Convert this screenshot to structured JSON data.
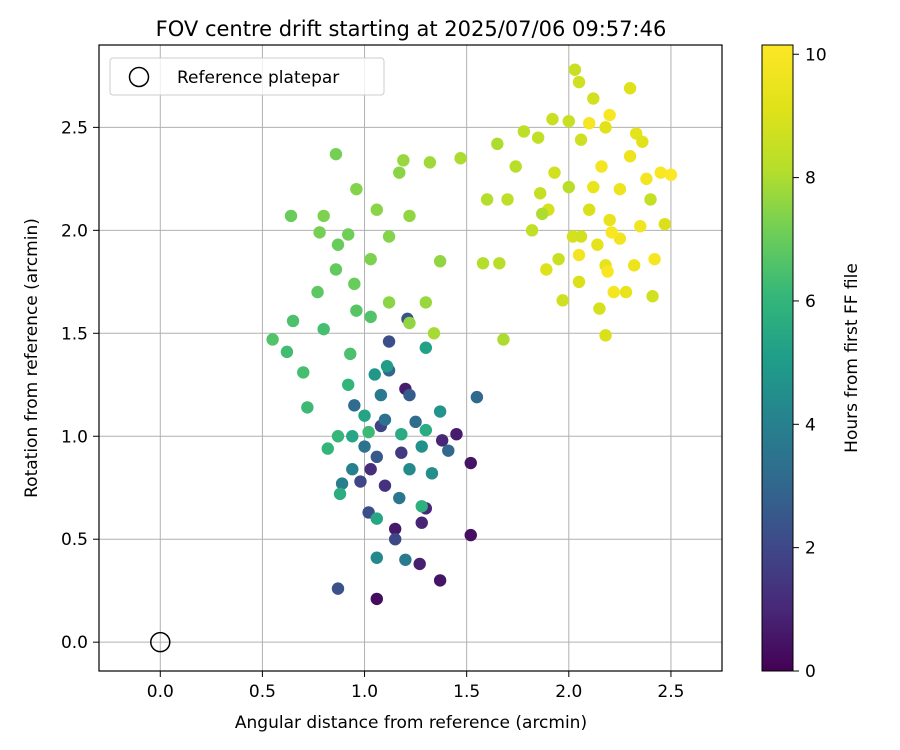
{
  "chart_data": {
    "type": "scatter",
    "title": "FOV centre drift starting at 2025/07/06 09:57:46",
    "xlabel": "Angular distance from reference (arcmin)",
    "ylabel": "Rotation from reference (arcmin)",
    "xlim": [
      -0.3,
      2.75
    ],
    "ylim": [
      -0.14,
      2.9
    ],
    "x_ticks": [
      0.0,
      0.5,
      1.0,
      1.5,
      2.0,
      2.5
    ],
    "y_ticks": [
      0.0,
      0.5,
      1.0,
      1.5,
      2.0,
      2.5
    ],
    "grid": true,
    "legend": {
      "placement": "upper-left",
      "entries": [
        {
          "label": "Reference platepar",
          "marker": "hollow-circle"
        }
      ]
    },
    "colorbar": {
      "label": "Hours from first FF file",
      "colormap": "viridis",
      "range": [
        0,
        10.15
      ],
      "ticks": [
        0,
        2,
        4,
        6,
        8,
        10
      ]
    },
    "reference_point": {
      "x": 0.0,
      "y": 0.0
    },
    "series": [
      {
        "marker": "filled-circle",
        "points": [
          [
            1.06,
            0.21,
            0.3
          ],
          [
            1.37,
            0.3,
            0.5
          ],
          [
            0.87,
            0.26,
            2.3
          ],
          [
            1.52,
            0.52,
            0.4
          ],
          [
            1.52,
            0.87,
            0.5
          ],
          [
            1.45,
            1.01,
            0.7
          ],
          [
            1.38,
            0.98,
            1.0
          ],
          [
            1.27,
            0.38,
            0.8
          ],
          [
            1.3,
            0.65,
            1.0
          ],
          [
            1.15,
            0.55,
            0.6
          ],
          [
            1.28,
            0.58,
            0.9
          ],
          [
            1.2,
            1.23,
            0.7
          ],
          [
            1.03,
            0.84,
            1.2
          ],
          [
            1.1,
            0.76,
            1.3
          ],
          [
            1.18,
            0.92,
            1.6
          ],
          [
            1.08,
            1.05,
            1.8
          ],
          [
            1.15,
            0.5,
            2.0
          ],
          [
            1.02,
            0.63,
            2.2
          ],
          [
            0.98,
            0.78,
            2.0
          ],
          [
            1.06,
            0.9,
            2.5
          ],
          [
            1.12,
            1.46,
            2.2
          ],
          [
            1.21,
            1.57,
            2.4
          ],
          [
            1.12,
            1.32,
            3.0
          ],
          [
            1.22,
            1.2,
            2.7
          ],
          [
            1.25,
            1.07,
            3.2
          ],
          [
            1.41,
            0.93,
            3.0
          ],
          [
            1.55,
            1.19,
            3.1
          ],
          [
            0.95,
            1.15,
            3.2
          ],
          [
            1.1,
            1.08,
            3.4
          ],
          [
            1.0,
            0.95,
            3.5
          ],
          [
            1.17,
            0.7,
            3.6
          ],
          [
            1.2,
            0.4,
            3.8
          ],
          [
            1.06,
            0.41,
            4.3
          ],
          [
            0.94,
            0.84,
            4.0
          ],
          [
            0.89,
            0.77,
            3.9
          ],
          [
            1.08,
            1.2,
            3.7
          ],
          [
            1.22,
            0.84,
            4.4
          ],
          [
            1.33,
            0.82,
            4.5
          ],
          [
            1.37,
            1.12,
            4.7
          ],
          [
            1.28,
            0.95,
            4.6
          ],
          [
            1.05,
            1.3,
            4.8
          ],
          [
            1.3,
            1.43,
            5.2
          ],
          [
            1.11,
            1.34,
            5.0
          ],
          [
            1.0,
            1.1,
            5.3
          ],
          [
            0.94,
            1.0,
            5.4
          ],
          [
            1.18,
            1.01,
            5.6
          ],
          [
            1.3,
            1.03,
            5.6
          ],
          [
            1.06,
            0.6,
            5.4
          ],
          [
            1.28,
            0.66,
            5.8
          ],
          [
            0.88,
            0.72,
            5.7
          ],
          [
            0.82,
            0.94,
            6.0
          ],
          [
            0.87,
            1.0,
            6.1
          ],
          [
            1.02,
            1.02,
            6.2
          ],
          [
            0.92,
            1.25,
            6.0
          ],
          [
            0.72,
            1.14,
            6.2
          ],
          [
            0.7,
            1.31,
            6.4
          ],
          [
            0.62,
            1.41,
            6.3
          ],
          [
            0.65,
            1.56,
            6.5
          ],
          [
            0.55,
            1.47,
            6.6
          ],
          [
            0.8,
            1.52,
            6.4
          ],
          [
            0.93,
            1.4,
            6.5
          ],
          [
            0.96,
            1.61,
            6.7
          ],
          [
            1.03,
            1.58,
            6.6
          ],
          [
            0.77,
            1.7,
            6.8
          ],
          [
            0.86,
            1.81,
            6.9
          ],
          [
            0.95,
            1.74,
            7.0
          ],
          [
            0.87,
            1.93,
            7.0
          ],
          [
            0.78,
            1.99,
            7.2
          ],
          [
            0.92,
            1.98,
            7.1
          ],
          [
            0.8,
            2.07,
            7.3
          ],
          [
            0.64,
            2.07,
            7.0
          ],
          [
            0.96,
            2.2,
            7.4
          ],
          [
            1.03,
            1.86,
            7.3
          ],
          [
            1.12,
            1.97,
            7.4
          ],
          [
            1.17,
            2.28,
            7.5
          ],
          [
            1.22,
            2.07,
            7.6
          ],
          [
            1.06,
            2.1,
            7.5
          ],
          [
            1.19,
            2.34,
            7.7
          ],
          [
            0.86,
            2.37,
            7.2
          ],
          [
            1.32,
            2.33,
            7.8
          ],
          [
            1.37,
            1.85,
            7.6
          ],
          [
            1.3,
            1.65,
            7.7
          ],
          [
            1.12,
            1.65,
            7.5
          ],
          [
            1.22,
            1.55,
            7.6
          ],
          [
            1.34,
            1.5,
            7.9
          ],
          [
            1.47,
            2.35,
            8.0
          ],
          [
            1.58,
            1.84,
            8.1
          ],
          [
            1.68,
            1.47,
            8.0
          ],
          [
            1.66,
            1.84,
            8.2
          ],
          [
            1.6,
            2.15,
            8.1
          ],
          [
            1.7,
            2.15,
            8.3
          ],
          [
            1.65,
            2.42,
            8.0
          ],
          [
            1.74,
            2.31,
            8.2
          ],
          [
            1.82,
            2.0,
            8.4
          ],
          [
            1.86,
            2.18,
            8.5
          ],
          [
            1.78,
            2.48,
            8.3
          ],
          [
            1.85,
            2.45,
            8.4
          ],
          [
            1.92,
            2.54,
            8.6
          ],
          [
            2.0,
            2.53,
            8.6
          ],
          [
            2.06,
            2.44,
            8.7
          ],
          [
            1.93,
            2.28,
            8.8
          ],
          [
            1.95,
            1.86,
            8.6
          ],
          [
            1.97,
            1.66,
            8.7
          ],
          [
            2.02,
            1.97,
            8.9
          ],
          [
            2.05,
            1.75,
            9.0
          ],
          [
            2.1,
            2.1,
            9.0
          ],
          [
            2.12,
            2.64,
            8.8
          ],
          [
            2.05,
            2.72,
            8.7
          ],
          [
            2.03,
            2.78,
            8.6
          ],
          [
            2.18,
            2.5,
            9.2
          ],
          [
            2.14,
            1.93,
            9.3
          ],
          [
            2.2,
            2.05,
            9.4
          ],
          [
            2.18,
            1.83,
            9.3
          ],
          [
            2.28,
            1.7,
            9.4
          ],
          [
            2.25,
            2.2,
            9.6
          ],
          [
            2.35,
            2.02,
            9.7
          ],
          [
            2.38,
            2.25,
            9.8
          ],
          [
            2.45,
            2.28,
            10.0
          ],
          [
            2.5,
            2.27,
            10.1
          ],
          [
            2.42,
            1.86,
            9.9
          ],
          [
            2.2,
            2.56,
            10.0
          ],
          [
            2.3,
            2.69,
            9.1
          ],
          [
            2.33,
            2.47,
            9.3
          ],
          [
            2.41,
            1.68,
            8.8
          ],
          [
            2.47,
            2.03,
            9.0
          ],
          [
            2.36,
            2.43,
            9.2
          ],
          [
            2.18,
            1.49,
            9.0
          ],
          [
            2.15,
            1.62,
            8.9
          ],
          [
            2.06,
            1.97,
            8.8
          ],
          [
            1.9,
            2.1,
            8.9
          ],
          [
            1.89,
            1.81,
            9.1
          ],
          [
            2.12,
            2.21,
            9.5
          ],
          [
            2.25,
            1.96,
            9.7
          ],
          [
            2.16,
            2.31,
            9.8
          ],
          [
            2.3,
            2.36,
            9.6
          ],
          [
            2.21,
            1.99,
            10.0
          ],
          [
            2.19,
            1.8,
            10.0
          ],
          [
            2.05,
            1.88,
            9.8
          ],
          [
            2.22,
            1.7,
            9.9
          ],
          [
            2.1,
            2.52,
            9.9
          ],
          [
            2.0,
            2.21,
            8.2
          ],
          [
            1.87,
            2.08,
            8.0
          ],
          [
            2.4,
            2.15,
            8.5
          ],
          [
            2.32,
            1.83,
            9.6
          ]
        ]
      }
    ]
  }
}
